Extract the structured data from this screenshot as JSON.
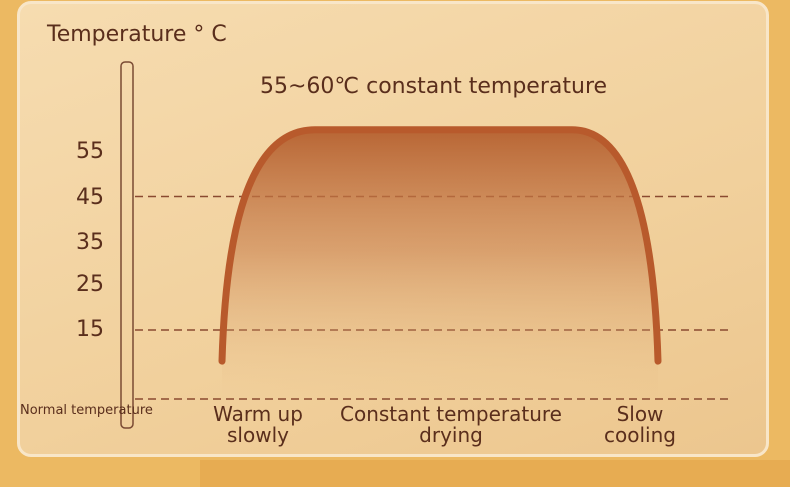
{
  "chart_data": {
    "type": "line",
    "ylabel": "Temperature ° C",
    "annotation": "55~60℃ constant temperature",
    "y_ticks": [
      "55",
      "45",
      "35",
      "25",
      "15"
    ],
    "y_bottom_label": "Normal temperature",
    "phases": [
      "Warm up slowly",
      "Constant temperature drying",
      "Slow cooling"
    ],
    "series": [
      {
        "phase_values": {
          "start": 8,
          "plateau": 60,
          "end": 8
        }
      }
    ],
    "reference_lines": [
      45,
      15,
      "Normal temperature"
    ],
    "grid": false,
    "colors": {
      "curve": "#b85a2c",
      "text": "#5a2e1c",
      "background": "#f3d6a6",
      "outer": "#ecb962"
    }
  }
}
